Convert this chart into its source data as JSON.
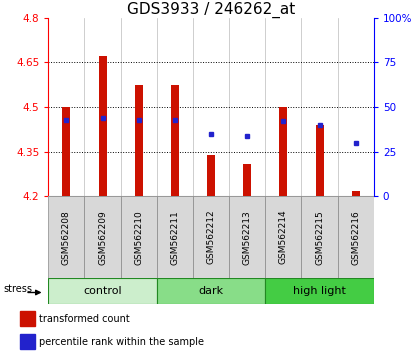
{
  "title": "GDS3933 / 246262_at",
  "samples": [
    "GSM562208",
    "GSM562209",
    "GSM562210",
    "GSM562211",
    "GSM562212",
    "GSM562213",
    "GSM562214",
    "GSM562215",
    "GSM562216"
  ],
  "bar_values": [
    4.5,
    4.67,
    4.575,
    4.575,
    4.34,
    4.31,
    4.5,
    4.44,
    4.22
  ],
  "bar_base": 4.2,
  "percentile_values": [
    43,
    44,
    43,
    43,
    35,
    34,
    42,
    40,
    30
  ],
  "ylim": [
    4.2,
    4.8
  ],
  "yticks_left": [
    4.2,
    4.35,
    4.5,
    4.65,
    4.8
  ],
  "grid_yticks": [
    4.35,
    4.5,
    4.65
  ],
  "right_yticks": [
    0,
    25,
    50,
    75,
    100
  ],
  "bar_color": "#cc1100",
  "blue_color": "#2222cc",
  "groups": [
    {
      "label": "control",
      "n": 3,
      "color": "#cceecc"
    },
    {
      "label": "dark",
      "n": 3,
      "color": "#88dd88"
    },
    {
      "label": "high light",
      "n": 3,
      "color": "#44cc44"
    }
  ],
  "stress_label": "stress",
  "legend_bar_label": "transformed count",
  "legend_dot_label": "percentile rank within the sample",
  "title_fontsize": 11,
  "axis_tick_fontsize": 7.5,
  "sample_fontsize": 6.5,
  "group_fontsize": 8,
  "legend_fontsize": 7,
  "bar_width": 0.22
}
